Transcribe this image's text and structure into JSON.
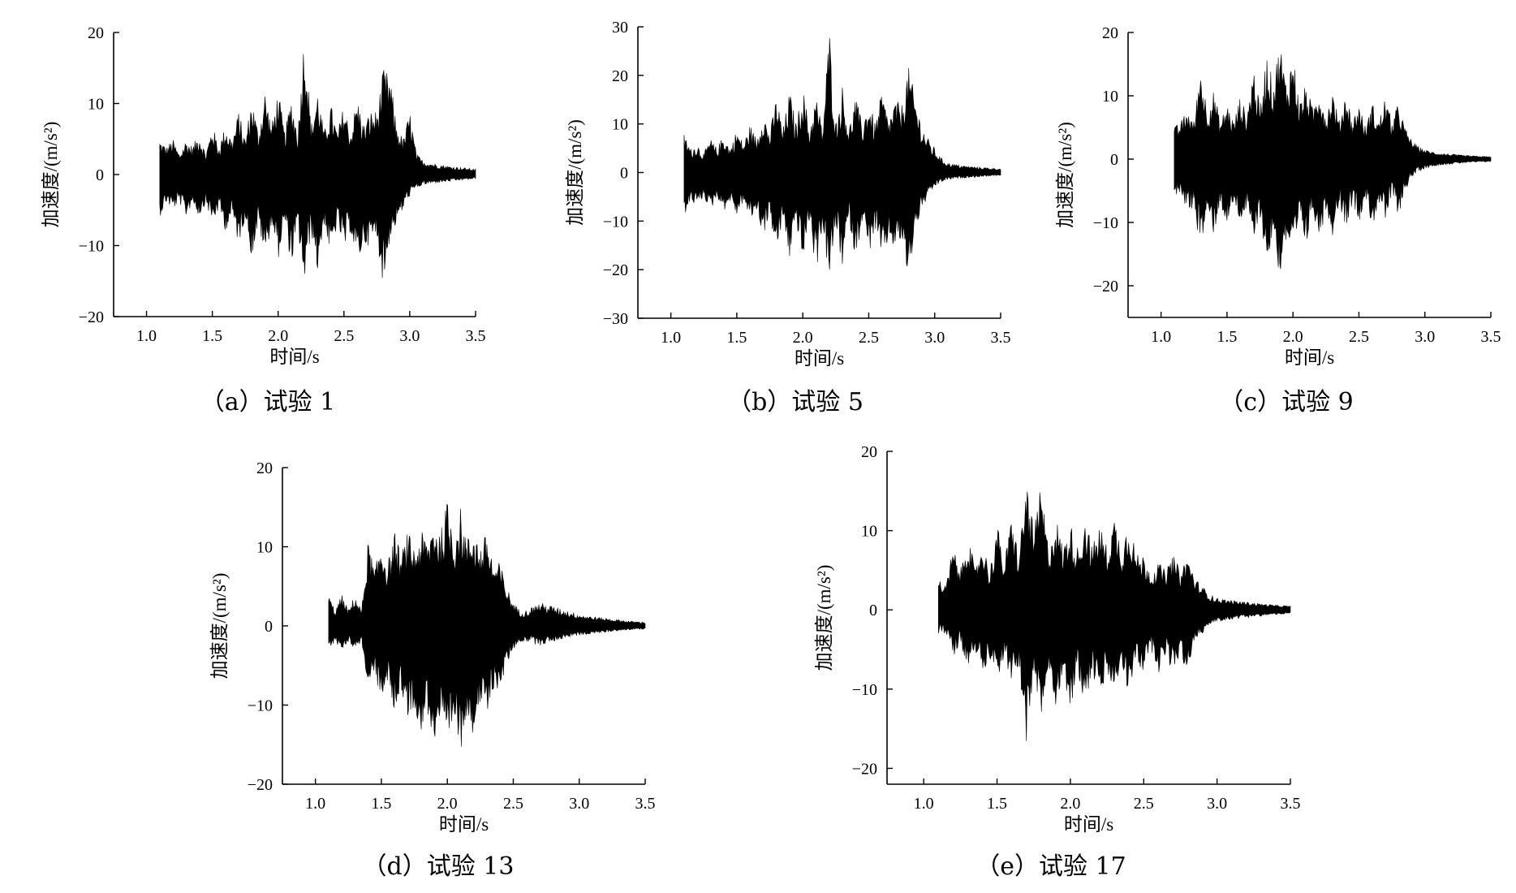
{
  "chart_data": [
    {
      "type": "line",
      "caption": "（a）试验 1",
      "xlabel": "时间/s",
      "ylabel": "加速度/(m/s²)",
      "xlim": [
        0.75,
        3.5
      ],
      "ylim": [
        -20,
        20
      ],
      "xticks": [
        1.0,
        1.5,
        2.0,
        2.5,
        3.0,
        3.5
      ],
      "xtick_labels": [
        "1.0",
        "1.5",
        "2.0",
        "2.5",
        "3.0",
        "3.5"
      ],
      "yticks": [
        -20,
        -10,
        0,
        10,
        20
      ],
      "ytick_labels": [
        "−20",
        "−10",
        "0",
        "10",
        "20"
      ],
      "grid": false,
      "signal_start": 1.1,
      "signal_end": 3.5,
      "series": [
        {
          "x": [
            1.1,
            1.15,
            1.2,
            1.25,
            1.3,
            1.35,
            1.4,
            1.45,
            1.5,
            1.55,
            1.6,
            1.65,
            1.7,
            1.75,
            1.8,
            1.85,
            1.9,
            1.95,
            2.0,
            2.05,
            2.1,
            2.15,
            2.2,
            2.25,
            2.3,
            2.35,
            2.4,
            2.45,
            2.5,
            2.55,
            2.6,
            2.65,
            2.7,
            2.75,
            2.8,
            2.85,
            2.9,
            2.95,
            3.0,
            3.05,
            3.1,
            3.2,
            3.3,
            3.4,
            3.5
          ],
          "upper": [
            5,
            4,
            5,
            3,
            5,
            4,
            6,
            3,
            7,
            4,
            7,
            5,
            9,
            5,
            11,
            6,
            12,
            7,
            12,
            6,
            11,
            6,
            21,
            7,
            12,
            6,
            10,
            6,
            10,
            6,
            11,
            7,
            9,
            9,
            15,
            14,
            7,
            5,
            9,
            3,
            2,
            1.5,
            1.2,
            1.0,
            0.8
          ],
          "lower": [
            -6,
            -4,
            -5,
            -4,
            -6,
            -4,
            -6,
            -4,
            -7,
            -5,
            -8,
            -6,
            -10,
            -6,
            -12,
            -7,
            -12,
            -7,
            -12,
            -7,
            -13,
            -8,
            -16,
            -8,
            -14,
            -7,
            -12,
            -7,
            -11,
            -8,
            -13,
            -10,
            -10,
            -9,
            -16,
            -9,
            -7,
            -5,
            -3,
            -2,
            -1.5,
            -1.2,
            -1.0,
            -0.8,
            -0.6
          ]
        }
      ]
    },
    {
      "type": "line",
      "caption": "（b）试验 5",
      "xlabel": "时间/s",
      "ylabel": "加速度/(m/s²)",
      "xlim": [
        0.75,
        3.5
      ],
      "ylim": [
        -30,
        30
      ],
      "xticks": [
        1.0,
        1.5,
        2.0,
        2.5,
        3.0,
        3.5
      ],
      "xtick_labels": [
        "1.0",
        "1.5",
        "2.0",
        "2.5",
        "3.0",
        "3.5"
      ],
      "yticks": [
        -30,
        -20,
        -10,
        0,
        10,
        20,
        30
      ],
      "ytick_labels": [
        "−30",
        "−20",
        "−10",
        "0",
        "10",
        "20",
        "30"
      ],
      "grid": false,
      "signal_start": 1.1,
      "signal_end": 3.5,
      "series": [
        {
          "x": [
            1.1,
            1.15,
            1.2,
            1.25,
            1.3,
            1.35,
            1.4,
            1.45,
            1.5,
            1.55,
            1.6,
            1.65,
            1.7,
            1.75,
            1.8,
            1.85,
            1.9,
            1.95,
            2.0,
            2.05,
            2.1,
            2.15,
            2.2,
            2.25,
            2.3,
            2.35,
            2.4,
            2.45,
            2.5,
            2.55,
            2.6,
            2.65,
            2.7,
            2.75,
            2.8,
            2.85,
            2.9,
            2.95,
            3.0,
            3.05,
            3.1,
            3.2,
            3.3,
            3.4,
            3.5
          ],
          "upper": [
            8,
            5,
            6,
            4,
            7,
            5,
            8,
            5,
            9,
            6,
            10,
            7,
            13,
            8,
            16,
            9,
            17,
            10,
            18,
            9,
            16,
            9,
            30,
            10,
            18,
            9,
            16,
            10,
            15,
            10,
            17,
            11,
            15,
            14,
            22,
            16,
            10,
            7,
            5,
            3,
            2,
            1.5,
            1.2,
            1.0,
            0.8
          ],
          "lower": [
            -9,
            -6,
            -7,
            -5,
            -8,
            -5,
            -8,
            -6,
            -9,
            -6,
            -10,
            -8,
            -13,
            -9,
            -17,
            -10,
            -18,
            -10,
            -19,
            -10,
            -21,
            -11,
            -23,
            -11,
            -20,
            -10,
            -18,
            -10,
            -17,
            -12,
            -19,
            -14,
            -16,
            -14,
            -23,
            -12,
            -8,
            -5,
            -3,
            -2,
            -1.5,
            -1.2,
            -1.0,
            -0.8,
            -0.6
          ]
        }
      ]
    },
    {
      "type": "line",
      "caption": "（c）试验 9",
      "xlabel": "时间/s",
      "ylabel": "加速度/(m/s²)",
      "xlim": [
        0.75,
        3.5
      ],
      "ylim": [
        -25,
        20
      ],
      "xticks": [
        1.0,
        1.5,
        2.0,
        2.5,
        3.0,
        3.5
      ],
      "xtick_labels": [
        "1.0",
        "1.5",
        "2.0",
        "2.5",
        "3.0",
        "3.5"
      ],
      "yticks": [
        -20,
        -10,
        0,
        10,
        20
      ],
      "ytick_labels": [
        "−20",
        "−10",
        "0",
        "10",
        "20"
      ],
      "grid": false,
      "signal_start": 1.1,
      "signal_end": 3.5,
      "series": [
        {
          "x": [
            1.1,
            1.15,
            1.2,
            1.25,
            1.3,
            1.35,
            1.4,
            1.45,
            1.5,
            1.55,
            1.6,
            1.65,
            1.7,
            1.75,
            1.8,
            1.85,
            1.9,
            1.95,
            2.0,
            2.05,
            2.1,
            2.15,
            2.2,
            2.25,
            2.3,
            2.35,
            2.4,
            2.45,
            2.5,
            2.55,
            2.6,
            2.65,
            2.7,
            2.75,
            2.8,
            2.85,
            2.9,
            2.95,
            3.0,
            3.05,
            3.1,
            3.2,
            3.3,
            3.4,
            3.5
          ],
          "upper": [
            5,
            6,
            8,
            6,
            15,
            8,
            11,
            6,
            9,
            6,
            10,
            7,
            15,
            8,
            17,
            12,
            19,
            12,
            17,
            9,
            12,
            8,
            12,
            7,
            11,
            6,
            11,
            6,
            9,
            5,
            9,
            6,
            10,
            6,
            9,
            5,
            3,
            2,
            1.5,
            1.2,
            1.0,
            0.8,
            0.6,
            0.5,
            0.4
          ],
          "lower": [
            -6,
            -6,
            -8,
            -8,
            -14,
            -9,
            -12,
            -7,
            -11,
            -7,
            -10,
            -8,
            -14,
            -9,
            -17,
            -12,
            -19,
            -13,
            -17,
            -10,
            -14,
            -8,
            -13,
            -8,
            -12,
            -7,
            -11,
            -7,
            -10,
            -6,
            -11,
            -7,
            -10,
            -6,
            -9,
            -5,
            -3,
            -2,
            -1.5,
            -1.2,
            -1.0,
            -0.8,
            -0.6,
            -0.5,
            -0.4
          ]
        }
      ]
    },
    {
      "type": "line",
      "caption": "（d）试验 13",
      "xlabel": "时间/s",
      "ylabel": "加速度/(m/s²)",
      "xlim": [
        0.75,
        3.5
      ],
      "ylim": [
        -20,
        20
      ],
      "xticks": [
        1.0,
        1.5,
        2.0,
        2.5,
        3.0,
        3.5
      ],
      "xtick_labels": [
        "1.0",
        "1.5",
        "2.0",
        "2.5",
        "3.0",
        "3.5"
      ],
      "yticks": [
        -20,
        -10,
        0,
        10,
        20
      ],
      "ytick_labels": [
        "−20",
        "−10",
        "0",
        "10",
        "20"
      ],
      "grid": false,
      "signal_start": 1.1,
      "signal_end": 3.5,
      "series": [
        {
          "x": [
            1.1,
            1.15,
            1.2,
            1.25,
            1.3,
            1.35,
            1.4,
            1.45,
            1.5,
            1.55,
            1.6,
            1.65,
            1.7,
            1.75,
            1.8,
            1.85,
            1.9,
            1.95,
            2.0,
            2.05,
            2.1,
            2.15,
            2.2,
            2.25,
            2.3,
            2.35,
            2.4,
            2.45,
            2.5,
            2.55,
            2.6,
            2.7,
            2.8,
            2.9,
            3.0,
            3.1,
            3.2,
            3.3,
            3.4,
            3.5
          ],
          "upper": [
            4,
            2,
            4,
            2,
            4,
            2,
            11,
            7,
            11,
            8,
            12,
            9,
            12,
            10,
            12,
            11,
            14,
            12,
            16,
            12,
            15,
            11,
            13,
            10,
            12,
            8,
            8,
            5,
            3,
            2,
            2,
            3,
            2.5,
            2,
            1.5,
            1.2,
            1.0,
            0.8,
            0.6,
            0.5
          ],
          "lower": [
            -3,
            -2,
            -3,
            -2,
            -3,
            -2,
            -8,
            -6,
            -10,
            -7,
            -11,
            -8,
            -12,
            -10,
            -14,
            -11,
            -15,
            -12,
            -17,
            -12,
            -16,
            -11,
            -14,
            -10,
            -12,
            -8,
            -8,
            -5,
            -3,
            -2,
            -2,
            -2.5,
            -2,
            -1.5,
            -1.2,
            -1.0,
            -0.8,
            -0.6,
            -0.5,
            -0.4
          ]
        }
      ]
    },
    {
      "type": "line",
      "caption": "（e）试验 17",
      "xlabel": "时间/s",
      "ylabel": "加速度/(m/s²)",
      "xlim": [
        0.75,
        3.5
      ],
      "ylim": [
        -22,
        20
      ],
      "xticks": [
        1.0,
        1.5,
        2.0,
        2.5,
        3.0,
        3.5
      ],
      "xtick_labels": [
        "1.0",
        "1.5",
        "2.0",
        "2.5",
        "3.0",
        "3.5"
      ],
      "yticks": [
        -20,
        -10,
        0,
        10,
        20
      ],
      "ytick_labels": [
        "−20",
        "−10",
        "0",
        "10",
        "20"
      ],
      "grid": false,
      "signal_start": 1.1,
      "signal_end": 3.5,
      "series": [
        {
          "x": [
            1.1,
            1.15,
            1.2,
            1.25,
            1.3,
            1.35,
            1.4,
            1.45,
            1.5,
            1.55,
            1.6,
            1.65,
            1.7,
            1.75,
            1.8,
            1.85,
            1.9,
            1.95,
            2.0,
            2.05,
            2.1,
            2.15,
            2.2,
            2.25,
            2.3,
            2.35,
            2.4,
            2.45,
            2.5,
            2.55,
            2.6,
            2.65,
            2.7,
            2.75,
            2.8,
            2.85,
            2.9,
            2.95,
            3.0,
            3.1,
            3.2,
            3.3,
            3.4,
            3.5
          ],
          "upper": [
            4,
            3,
            8,
            5,
            10,
            5,
            9,
            5,
            11,
            6,
            12,
            7,
            17,
            10,
            16,
            8,
            12,
            8,
            11,
            8,
            12,
            8,
            11,
            8,
            12,
            8,
            12,
            7,
            7,
            5,
            6,
            5,
            7,
            5,
            7,
            4,
            3,
            2,
            1.5,
            1.2,
            1.0,
            0.8,
            0.6,
            0.5
          ],
          "lower": [
            -3,
            -3,
            -6,
            -4,
            -8,
            -5,
            -8,
            -6,
            -9,
            -6,
            -10,
            -7,
            -17,
            -9,
            -14,
            -8,
            -12,
            -8,
            -13,
            -8,
            -12,
            -8,
            -12,
            -8,
            -11,
            -7,
            -11,
            -7,
            -8,
            -5,
            -8,
            -6,
            -8,
            -6,
            -8,
            -4,
            -3,
            -2,
            -1.5,
            -1.2,
            -1.0,
            -0.8,
            -0.6,
            -0.5
          ]
        }
      ]
    }
  ]
}
